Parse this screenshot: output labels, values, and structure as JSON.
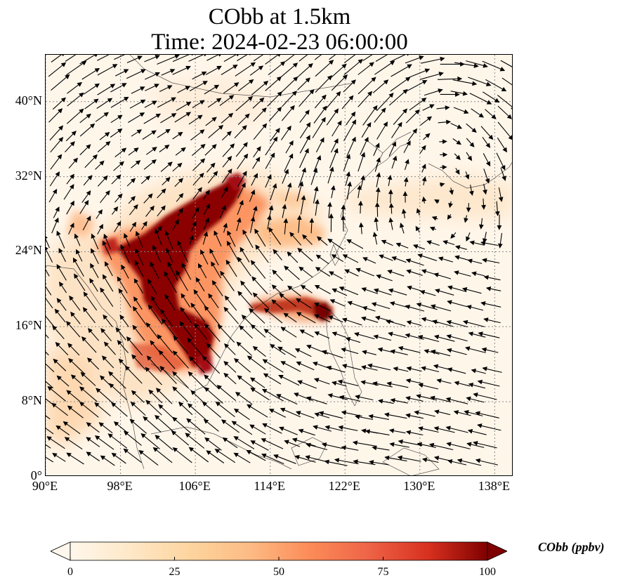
{
  "title": {
    "line1": "CObb at 1.5km",
    "line2": "Time: 2024-02-23 06:00:00"
  },
  "map": {
    "lat_ticks": [
      "40°N",
      "32°N",
      "24°N",
      "16°N",
      "8°N",
      "0°"
    ],
    "lat_values": [
      40,
      32,
      24,
      16,
      8,
      0
    ],
    "lon_ticks": [
      "90°E",
      "98°E",
      "106°E",
      "114°E",
      "122°E",
      "130°E",
      "138°E"
    ],
    "lon_values": [
      90,
      98,
      106,
      114,
      122,
      130,
      138
    ],
    "lat_range": [
      0,
      45
    ],
    "lon_range": [
      90,
      140
    ],
    "gridlines": true,
    "field_colormap": "OrRd",
    "colors": {
      "background": "#fff6ea",
      "plume_dark": "#800000",
      "plume_mid": "#d7301f",
      "plume_light": "#fdbb84",
      "grid": "#888888",
      "vector": "#000000"
    }
  },
  "colorbar": {
    "ticks": [
      "0",
      "25",
      "50",
      "75",
      "100"
    ],
    "tick_values": [
      0,
      25,
      50,
      75,
      100
    ],
    "label": "CObb (ppbv)",
    "range": [
      0,
      100
    ],
    "extend": "both"
  }
}
